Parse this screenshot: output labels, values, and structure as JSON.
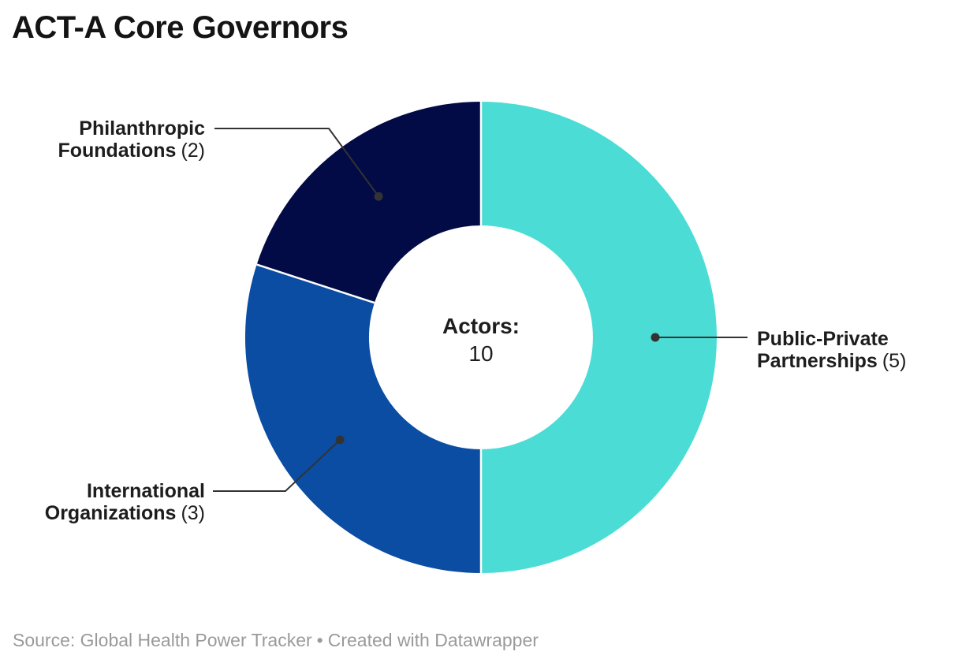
{
  "title": "ACT-A Core Governors",
  "center": {
    "label": "Actors:",
    "value": "10"
  },
  "footer": {
    "source": "Source: Global Health Power Tracker",
    "separator": "•",
    "attribution": "Created with Datawrapper"
  },
  "chart_data": {
    "type": "pie",
    "subtype": "donut",
    "title": "ACT-A Core Governors",
    "center_label": "Actors:",
    "center_value": 10,
    "total": 10,
    "start_angle_deg": 0,
    "direction": "clockwise",
    "inner_radius_ratio": 0.475,
    "slices": [
      {
        "label": "Public-Private Partnerships",
        "value": 5,
        "color": "#4bdcd6",
        "label_lines": [
          "Public-Private",
          "Partnerships"
        ],
        "count_label": "(5)"
      },
      {
        "label": "International Organizations",
        "value": 3,
        "color": "#0b4da3",
        "label_lines": [
          "International",
          "Organizations"
        ],
        "count_label": "(3)"
      },
      {
        "label": "Philanthropic Foundations",
        "value": 2,
        "color": "#020b45",
        "label_lines": [
          "Philanthropic",
          "Foundations"
        ],
        "count_label": "(2)"
      }
    ],
    "colors": {
      "connector": "#333333",
      "separator": "#ffffff",
      "text": "#1d1d1d"
    }
  }
}
